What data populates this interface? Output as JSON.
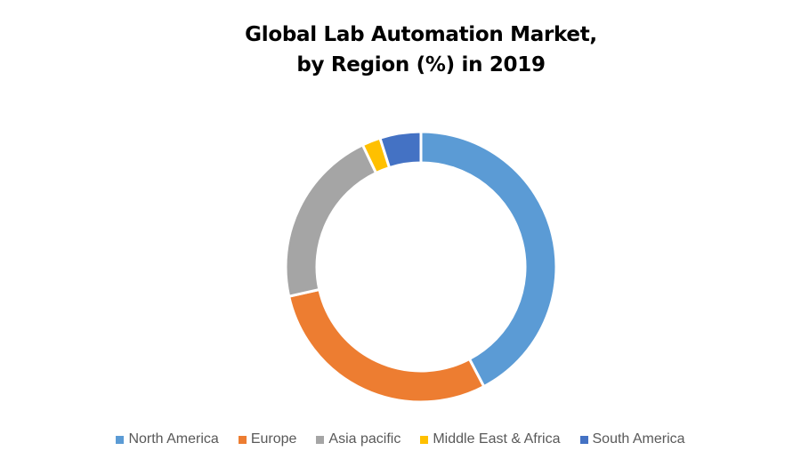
{
  "chart_data": {
    "type": "pie",
    "variant": "donut",
    "title": [
      "Global Lab Automation Market,",
      "by Region (%) in 2019"
    ],
    "categories": [
      "North America",
      "Europe",
      "Asia pacific",
      "Middle East & Africa",
      "South America"
    ],
    "values": [
      42.3,
      29.2,
      21.4,
      2.2,
      4.9
    ],
    "colors": [
      "#5B9BD5",
      "#ED7D31",
      "#A5A5A5",
      "#FFC000",
      "#4472C4"
    ],
    "data_labels": false,
    "legend_position": "bottom",
    "start": "top",
    "direction": "clockwise"
  }
}
